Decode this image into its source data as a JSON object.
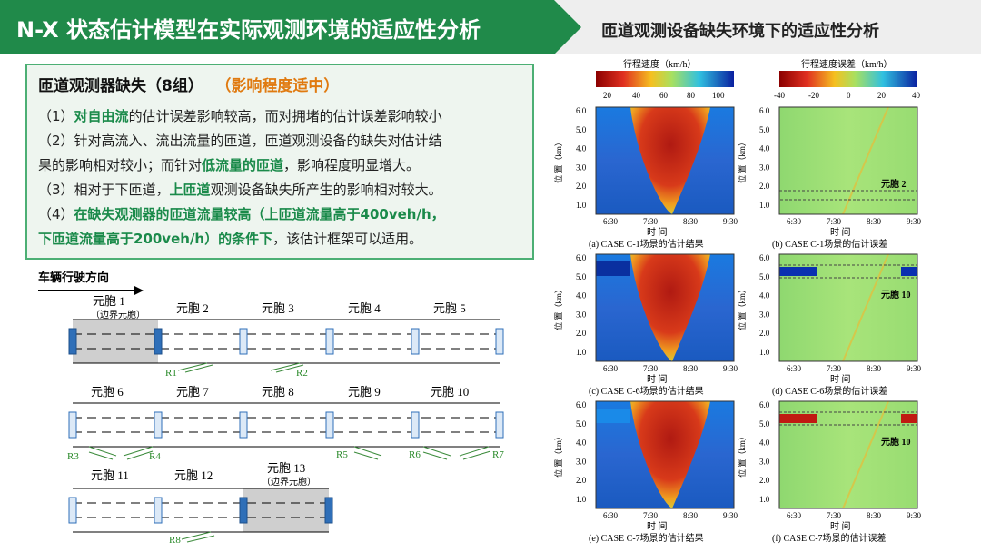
{
  "header": {
    "title": "N-X 状态估计模型在实际观测环境的适应性分析",
    "subtitle": "匝道观测设备缺失环境下的适应性分析"
  },
  "summary": {
    "heading": "匝道观测器缺失（8组）",
    "impact": "（影响程度适中）",
    "l1_a": "（1）",
    "l1_hl": "对自由流",
    "l1_b": "的估计误差影响较高，而对拥堵的估计误差影响较小",
    "l2": "（2）针对高流入、流出流量的匝道，匝道观测设备的缺失对估计结",
    "l3_a": "果的影响相对较小；而针对",
    "l3_hl": "低流量的匝道",
    "l3_b": "，影响程度明显增大。",
    "l4_a": "（3）相对于下匝道，",
    "l4_hl": "上匝道",
    "l4_b": "观测设备缺失所产生的影响相对较大。",
    "l5_a": "（4）",
    "l5_hl": "在缺失观测器的匝道流量较高（上匝道流量高于400veh/h，",
    "l6_hl": "下匝道流量高于200veh/h）的条件下",
    "l6_b": "，该估计框架可以适用。"
  },
  "diagram": {
    "direction_label": "车辆行驶方向",
    "row1": [
      "元胞 1",
      "元胞 2",
      "元胞 3",
      "元胞 4",
      "元胞 5"
    ],
    "row1_note": "（边界元胞）",
    "row2": [
      "元胞 6",
      "元胞 7",
      "元胞 8",
      "元胞 9",
      "元胞 10"
    ],
    "row3": [
      "元胞 11",
      "元胞 12",
      "元胞 13"
    ],
    "row3_note": "（边界元胞）",
    "ramps": [
      "R1",
      "R2",
      "R3",
      "R4",
      "R5",
      "R6",
      "R7",
      "R8"
    ]
  },
  "charts": {
    "speed_legend_title": "行程速度（km/h）",
    "speed_ticks": [
      "20",
      "40",
      "60",
      "80",
      "100"
    ],
    "error_legend_title": "行程速度误差（km/h）",
    "error_ticks": [
      "-40",
      "-20",
      "0",
      "20",
      "40"
    ],
    "y_ticks": [
      "1.0",
      "2.0",
      "3.0",
      "4.0",
      "5.0",
      "6.0"
    ],
    "x_ticks": [
      "6:30",
      "7:30",
      "8:30",
      "9:30"
    ],
    "xlabel": "时 间",
    "ylabel": "位 置（km）",
    "captions": [
      "(a) CASE  C-1场景的估计结果",
      "(b) CASE  C-1场景的估计误差",
      "(c) CASE  C-6场景的估计结果",
      "(d) CASE  C-6场景的估计误差",
      "(e) CASE  C-7场景的估计结果",
      "(f) CASE  C-7场景的估计误差"
    ],
    "annotations": [
      "元胞 2",
      "元胞 10",
      "元胞 10"
    ],
    "colors": {
      "free_flow": "#1b6fd8",
      "congestion": "#c0281a",
      "error_bg": "#9fe07a"
    }
  }
}
